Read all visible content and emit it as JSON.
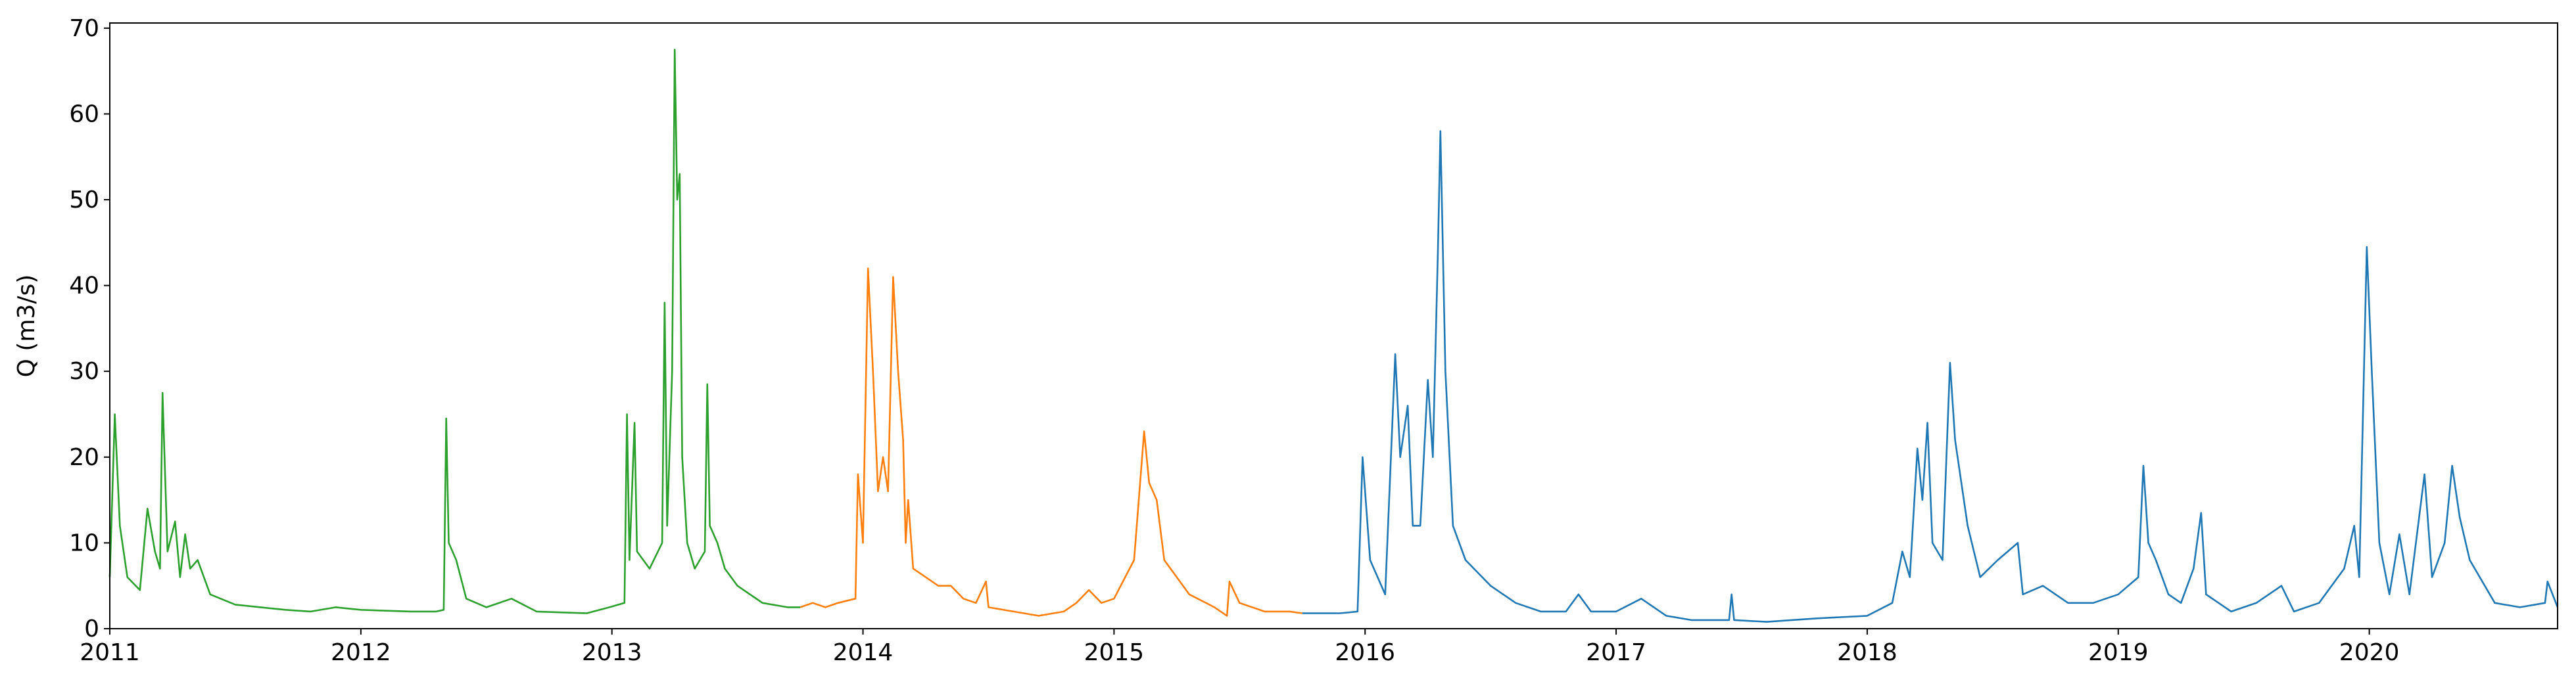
{
  "chart_data": {
    "type": "line",
    "ylabel": "Q (m3/s)",
    "xlim": [
      2011,
      2020.75
    ],
    "xticks": [
      2011,
      2012,
      2013,
      2014,
      2015,
      2016,
      2017,
      2018,
      2019,
      2020
    ],
    "ylim": [
      0,
      70.6
    ],
    "yticks": [
      0,
      10,
      20,
      30,
      40,
      50,
      60,
      70
    ],
    "grid": false,
    "series": [
      {
        "color": "#2ca02c",
        "x": [
          2011.0,
          2011.02,
          2011.04,
          2011.07,
          2011.12,
          2011.15,
          2011.18,
          2011.2,
          2011.21,
          2011.23,
          2011.26,
          2011.28,
          2011.3,
          2011.32,
          2011.35,
          2011.4,
          2011.5,
          2011.6,
          2011.7,
          2011.8,
          2011.9,
          2012.0,
          2012.2,
          2012.3,
          2012.33,
          2012.34,
          2012.35,
          2012.38,
          2012.42,
          2012.5,
          2012.6,
          2012.7,
          2012.9,
          2012.99,
          2013.05,
          2013.06,
          2013.07,
          2013.09,
          2013.1,
          2013.15,
          2013.2,
          2013.21,
          2013.22,
          2013.24,
          2013.25,
          2013.26,
          2013.27,
          2013.28,
          2013.3,
          2013.33,
          2013.37,
          2013.38,
          2013.39,
          2013.42,
          2013.45,
          2013.5,
          2013.55,
          2013.6,
          2013.7,
          2013.75
        ],
        "values": [
          6,
          25,
          12,
          6,
          4.5,
          14,
          9,
          7,
          27.5,
          9,
          12.5,
          6,
          11,
          7,
          8,
          4,
          2.8,
          2.5,
          2.2,
          2,
          2.5,
          2.2,
          2,
          2,
          2.2,
          24.5,
          10,
          8,
          3.5,
          2.5,
          3.5,
          2,
          1.8,
          2.5,
          3,
          25,
          8,
          24,
          9,
          7,
          10,
          38,
          12,
          30,
          67.5,
          50,
          53,
          20,
          10,
          7,
          9,
          28.5,
          12,
          10,
          7,
          5,
          4,
          3,
          2.5,
          2.5
        ]
      },
      {
        "color": "#ff7f0e",
        "x": [
          2013.75,
          2013.8,
          2013.85,
          2013.9,
          2013.97,
          2013.98,
          2014.0,
          2014.02,
          2014.04,
          2014.06,
          2014.08,
          2014.1,
          2014.12,
          2014.14,
          2014.16,
          2014.17,
          2014.18,
          2014.2,
          2014.25,
          2014.3,
          2014.35,
          2014.4,
          2014.45,
          2014.49,
          2014.5,
          2014.6,
          2014.7,
          2014.8,
          2014.85,
          2014.9,
          2014.95,
          2015.0,
          2015.08,
          2015.12,
          2015.14,
          2015.17,
          2015.2,
          2015.25,
          2015.3,
          2015.4,
          2015.45,
          2015.46,
          2015.5,
          2015.6,
          2015.7,
          2015.75
        ],
        "values": [
          2.5,
          3,
          2.5,
          3,
          3.5,
          18,
          10,
          42,
          30,
          16,
          20,
          16,
          41,
          30,
          22,
          10,
          15,
          7,
          6,
          5,
          5,
          3.5,
          3,
          5.5,
          2.5,
          2,
          1.5,
          2,
          3,
          4.5,
          3,
          3.5,
          8,
          23,
          17,
          15,
          8,
          6,
          4,
          2.5,
          1.5,
          5.5,
          3,
          2,
          2,
          1.8
        ]
      },
      {
        "color": "#1f77b4",
        "x": [
          2015.75,
          2015.9,
          2015.97,
          2015.99,
          2016.02,
          2016.08,
          2016.12,
          2016.14,
          2016.17,
          2016.19,
          2016.22,
          2016.25,
          2016.27,
          2016.29,
          2016.3,
          2016.32,
          2016.35,
          2016.4,
          2016.5,
          2016.6,
          2016.7,
          2016.8,
          2016.85,
          2016.9,
          2017.0,
          2017.1,
          2017.2,
          2017.3,
          2017.45,
          2017.46,
          2017.47,
          2017.6,
          2017.8,
          2018.0,
          2018.1,
          2018.14,
          2018.17,
          2018.2,
          2018.22,
          2018.24,
          2018.26,
          2018.3,
          2018.33,
          2018.35,
          2018.4,
          2018.45,
          2018.52,
          2018.6,
          2018.62,
          2018.7,
          2018.8,
          2018.9,
          2019.0,
          2019.08,
          2019.1,
          2019.12,
          2019.15,
          2019.2,
          2019.25,
          2019.3,
          2019.33,
          2019.35,
          2019.45,
          2019.55,
          2019.65,
          2019.7,
          2019.8,
          2019.9,
          2019.94,
          2019.96,
          2019.99,
          2020.01,
          2020.04,
          2020.08,
          2020.12,
          2020.16,
          2020.22,
          2020.25,
          2020.3,
          2020.33,
          2020.36,
          2020.4,
          2020.5,
          2020.6,
          2020.7,
          2020.71,
          2020.75
        ],
        "values": [
          1.8,
          1.8,
          2,
          20,
          8,
          4,
          32,
          20,
          26,
          12,
          12,
          29,
          20,
          44,
          58,
          30,
          12,
          8,
          5,
          3,
          2,
          2,
          4,
          2,
          2,
          3.5,
          1.5,
          1,
          1,
          4,
          1,
          0.8,
          1.2,
          1.5,
          3,
          9,
          6,
          21,
          15,
          24,
          10,
          8,
          31,
          22,
          12,
          6,
          8,
          10,
          4,
          5,
          3,
          3,
          4,
          6,
          19,
          10,
          8,
          4,
          3,
          7,
          13.5,
          4,
          2,
          3,
          5,
          2,
          3,
          7,
          12,
          6,
          44.5,
          30,
          10,
          4,
          11,
          4,
          18,
          6,
          10,
          19,
          13,
          8,
          3,
          2.5,
          3,
          5.5,
          2.5
        ]
      }
    ]
  }
}
